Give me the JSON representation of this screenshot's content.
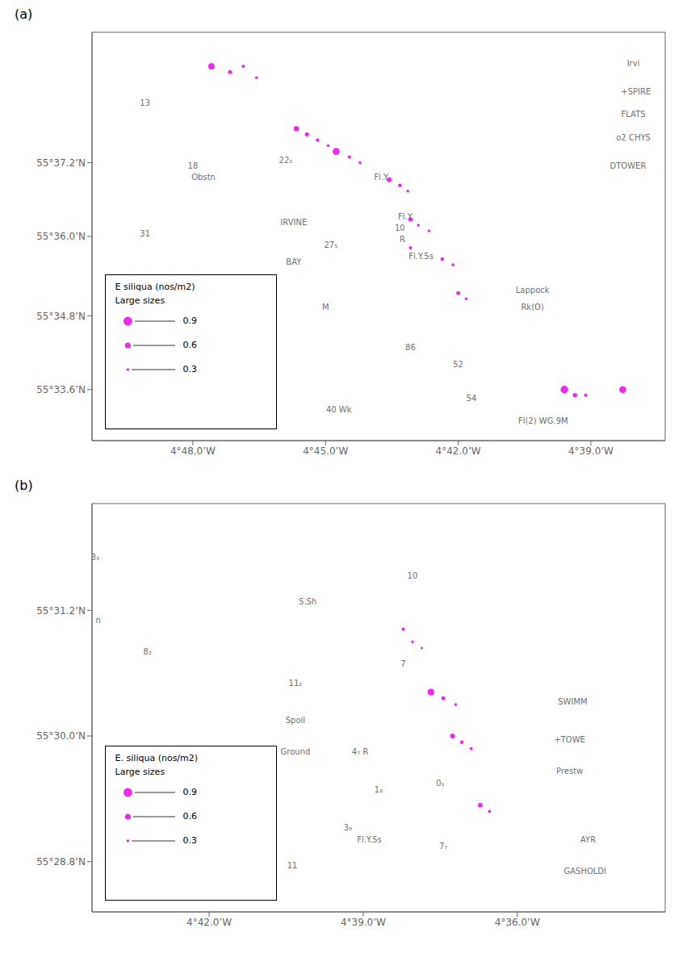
{
  "chart_data": [
    {
      "type": "scatter",
      "title": "(a)",
      "x": [
        -4.793,
        -4.786,
        -4.781,
        -4.776,
        -4.761,
        -4.757,
        -4.753,
        -4.749,
        -4.746,
        -4.741,
        -4.737,
        -4.726,
        -4.722,
        -4.719,
        -4.718,
        -4.715,
        -4.711,
        -4.718,
        -4.706,
        -4.702,
        -4.7,
        -4.697,
        -4.66,
        -4.656,
        -4.652,
        -4.638
      ],
      "values": [
        55.39,
        55.389,
        55.39,
        55.388,
        55.379,
        55.378,
        55.377,
        55.376,
        55.375,
        55.374,
        55.373,
        55.37,
        55.369,
        55.368,
        55.363,
        55.362,
        55.361,
        55.358,
        55.356,
        55.355,
        55.35,
        55.349,
        55.333,
        55.332,
        55.332,
        55.333
      ],
      "sizes": [
        0.65,
        0.42,
        0.32,
        0.3,
        0.55,
        0.42,
        0.35,
        0.3,
        0.72,
        0.35,
        0.3,
        0.5,
        0.38,
        0.3,
        0.45,
        0.3,
        0.28,
        0.35,
        0.38,
        0.3,
        0.42,
        0.3,
        0.78,
        0.45,
        0.32,
        0.72
      ],
      "color": "#ee00ee",
      "xlim": [
        -4.838,
        -4.622
      ],
      "ylim": [
        55.324,
        55.396
      ],
      "xticks": [
        {
          "value": -4.8,
          "label": "4°48.0’W"
        },
        {
          "value": -4.75,
          "label": "4°45.0’W"
        },
        {
          "value": -4.7,
          "label": "4°42.0’W"
        },
        {
          "value": -4.65,
          "label": "4°39.0’W"
        }
      ],
      "yticks": [
        {
          "value": 55.333,
          "label": "55°33.6’N"
        },
        {
          "value": 55.346,
          "label": "55°34.8’N"
        },
        {
          "value": 55.36,
          "label": "55°36.0’N"
        },
        {
          "value": 55.373,
          "label": "55°37.2’N"
        }
      ],
      "grid": false,
      "legend": "lower left",
      "legend_title": [
        "E siliqua (nos/m2)",
        "Large sizes"
      ],
      "legend_sizes": [
        0.9,
        0.6,
        0.3
      ],
      "annotations": [
        {
          "text": "IRVINE",
          "x": -4.762,
          "y": 55.362
        },
        {
          "text": "BAY",
          "x": -4.762,
          "y": 55.355
        },
        {
          "text": "M",
          "x": -4.75,
          "y": 55.347
        },
        {
          "text": "22₅",
          "x": -4.765,
          "y": 55.373
        },
        {
          "text": "27₅",
          "x": -4.748,
          "y": 55.358
        },
        {
          "text": "31",
          "x": -4.818,
          "y": 55.36
        },
        {
          "text": "13",
          "x": -4.818,
          "y": 55.383
        },
        {
          "text": "18",
          "x": -4.8,
          "y": 55.372
        },
        {
          "text": "Obstn",
          "x": -4.796,
          "y": 55.37
        },
        {
          "text": "Fl.Y",
          "x": -4.729,
          "y": 55.37
        },
        {
          "text": "Fl.Y",
          "x": -4.72,
          "y": 55.363
        },
        {
          "text": "Fl.Y.5s",
          "x": -4.714,
          "y": 55.356
        },
        {
          "text": "Irvi",
          "x": -4.634,
          "y": 55.39
        },
        {
          "text": "+SPIRE",
          "x": -4.633,
          "y": 55.385
        },
        {
          "text": "FLATS",
          "x": -4.634,
          "y": 55.381
        },
        {
          "text": "o2 CHYS",
          "x": -4.634,
          "y": 55.377
        },
        {
          "text": "DTOWER",
          "x": -4.636,
          "y": 55.372
        },
        {
          "text": "52",
          "x": -4.7,
          "y": 55.337
        },
        {
          "text": "54",
          "x": -4.695,
          "y": 55.331
        },
        {
          "text": "86",
          "x": -4.718,
          "y": 55.34
        },
        {
          "text": "Lappock",
          "x": -4.672,
          "y": 55.35
        },
        {
          "text": "Rk(O)",
          "x": -4.672,
          "y": 55.347
        },
        {
          "text": "Fl(2) WG.9M",
          "x": -4.668,
          "y": 55.327
        },
        {
          "text": "40 Wk",
          "x": -4.745,
          "y": 55.329
        },
        {
          "text": "10",
          "x": -4.722,
          "y": 55.361
        },
        {
          "text": "R",
          "x": -4.721,
          "y": 55.359
        }
      ]
    },
    {
      "type": "scatter",
      "title": "(b)",
      "x": [
        -4.637,
        -4.634,
        -4.631,
        -4.628,
        -4.624,
        -4.62,
        -4.621,
        -4.618,
        -4.615,
        -4.612,
        -4.609
      ],
      "values": [
        55.317,
        55.315,
        55.314,
        55.307,
        55.306,
        55.305,
        55.3,
        55.299,
        55.298,
        55.289,
        55.288
      ],
      "sizes": [
        0.32,
        0.28,
        0.25,
        0.68,
        0.42,
        0.3,
        0.5,
        0.38,
        0.3,
        0.48,
        0.32
      ],
      "color": "#ee00ee",
      "xlim": [
        -4.738,
        -4.552
      ],
      "ylim": [
        55.272,
        55.337
      ],
      "xticks": [
        {
          "value": -4.7,
          "label": "4°42.0’W"
        },
        {
          "value": -4.65,
          "label": "4°39.0’W"
        },
        {
          "value": -4.6,
          "label": "4°36.0’W"
        }
      ],
      "yticks": [
        {
          "value": 55.28,
          "label": "55°28.8’N"
        },
        {
          "value": 55.3,
          "label": "55°30.0’N"
        },
        {
          "value": 55.32,
          "label": "55°31.2’N"
        }
      ],
      "grid": false,
      "legend": "lower left",
      "legend_title": [
        "E. siliqua (nos/m2)",
        "Large sizes"
      ],
      "legend_sizes": [
        0.9,
        0.6,
        0.3
      ],
      "annotations": [
        {
          "text": "S.Sh",
          "x": -4.668,
          "y": 55.321
        },
        {
          "text": "11₂",
          "x": -4.672,
          "y": 55.308
        },
        {
          "text": "Spoil",
          "x": -4.672,
          "y": 55.302
        },
        {
          "text": "Ground",
          "x": -4.672,
          "y": 55.297
        },
        {
          "text": "4₇ R",
          "x": -4.651,
          "y": 55.297
        },
        {
          "text": "Fl.Y.5s",
          "x": -4.648,
          "y": 55.283
        },
        {
          "text": "0₁",
          "x": -4.625,
          "y": 55.292
        },
        {
          "text": "10",
          "x": -4.634,
          "y": 55.325
        },
        {
          "text": "7",
          "x": -4.637,
          "y": 55.311
        },
        {
          "text": "8₂",
          "x": -4.72,
          "y": 55.313
        },
        {
          "text": "11",
          "x": -4.673,
          "y": 55.279
        },
        {
          "text": "3₈",
          "x": -4.655,
          "y": 55.285
        },
        {
          "text": "1₆",
          "x": -4.645,
          "y": 55.291
        },
        {
          "text": "7₇",
          "x": -4.624,
          "y": 55.282
        },
        {
          "text": "3₃",
          "x": -4.737,
          "y": 55.328
        },
        {
          "text": "n",
          "x": -4.736,
          "y": 55.318
        },
        {
          "text": "SWIMM",
          "x": -4.582,
          "y": 55.305
        },
        {
          "text": "+TOWE",
          "x": -4.583,
          "y": 55.299
        },
        {
          "text": "Prestw",
          "x": -4.583,
          "y": 55.294
        },
        {
          "text": "AYR",
          "x": -4.577,
          "y": 55.283
        },
        {
          "text": "GASHOLDI",
          "x": -4.578,
          "y": 55.278
        }
      ]
    }
  ]
}
